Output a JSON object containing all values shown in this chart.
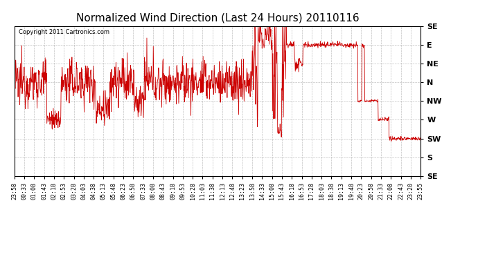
{
  "title": "Normalized Wind Direction (Last 24 Hours) 20110116",
  "copyright_text": "Copyright 2011 Cartronics.com",
  "line_color": "#cc0000",
  "background_color": "#ffffff",
  "plot_bg_color": "#ffffff",
  "grid_color": "#999999",
  "ytick_labels": [
    "SE",
    "E",
    "NE",
    "N",
    "NW",
    "W",
    "SW",
    "S",
    "SE"
  ],
  "ytick_values": [
    8,
    7,
    6,
    5,
    4,
    3,
    2,
    1,
    0
  ],
  "xtick_labels": [
    "23:58",
    "00:33",
    "01:08",
    "01:43",
    "02:18",
    "02:53",
    "03:28",
    "04:03",
    "04:38",
    "05:13",
    "05:48",
    "06:23",
    "06:58",
    "07:33",
    "08:08",
    "08:43",
    "09:18",
    "09:53",
    "10:28",
    "11:03",
    "11:38",
    "12:13",
    "12:48",
    "13:23",
    "13:58",
    "14:33",
    "15:08",
    "15:43",
    "16:18",
    "16:53",
    "17:28",
    "18:03",
    "18:38",
    "19:13",
    "19:48",
    "20:23",
    "20:58",
    "21:33",
    "22:08",
    "22:43",
    "23:20",
    "23:55"
  ],
  "title_fontsize": 11,
  "tick_fontsize": 6,
  "copyright_fontsize": 6
}
